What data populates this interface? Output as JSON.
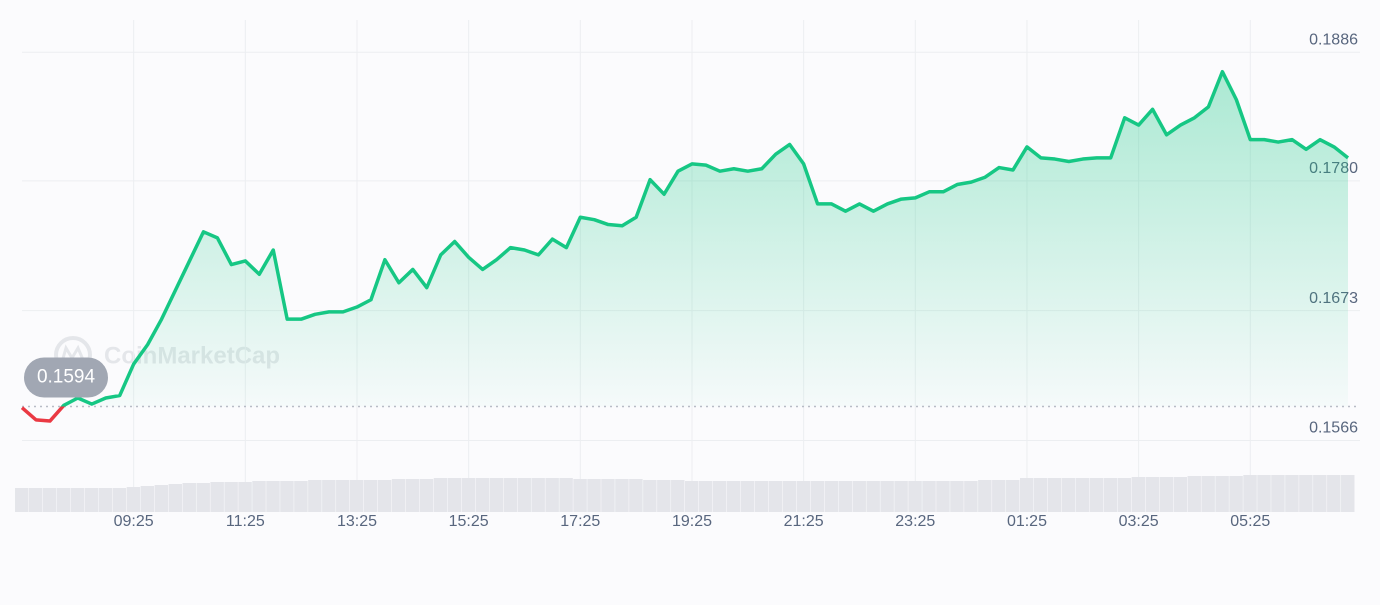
{
  "chart_data": {
    "type": "line",
    "watermark": "CoinMarketCap",
    "reference": 0.1594,
    "color": "#16c784",
    "down_color": "#ea3943",
    "categories": [
      null,
      null,
      null,
      null,
      null,
      null,
      null,
      null,
      "09:25",
      null,
      null,
      null,
      null,
      null,
      null,
      null,
      "11:25",
      null,
      null,
      null,
      null,
      null,
      null,
      null,
      "13:25",
      null,
      null,
      null,
      null,
      null,
      null,
      null,
      "15:25",
      null,
      null,
      null,
      null,
      null,
      null,
      null,
      "17:25",
      null,
      null,
      null,
      null,
      null,
      null,
      null,
      "19:25",
      null,
      null,
      null,
      null,
      null,
      null,
      null,
      "21:25",
      null,
      null,
      null,
      null,
      null,
      null,
      null,
      "23:25",
      null,
      null,
      null,
      null,
      null,
      null,
      null,
      "01:25",
      null,
      null,
      null,
      null,
      null,
      null,
      null,
      "03:25",
      null,
      null,
      null,
      null,
      null,
      null,
      null,
      "05:25",
      null,
      null,
      null,
      null,
      null,
      null,
      null
    ],
    "values": [
      0.1593,
      0.1583,
      0.1582,
      0.1595,
      0.1601,
      0.1596,
      0.1601,
      0.1603,
      0.1629,
      0.1645,
      0.1666,
      0.169,
      0.1714,
      0.1738,
      0.1733,
      0.1711,
      0.1714,
      0.1703,
      0.1723,
      0.1666,
      0.1666,
      0.167,
      0.1672,
      0.1672,
      0.1676,
      0.1682,
      0.1715,
      0.1696,
      0.1707,
      0.1692,
      0.1719,
      0.173,
      0.1717,
      0.1707,
      0.1715,
      0.1725,
      0.1723,
      0.1719,
      0.1732,
      0.1725,
      0.175,
      0.1748,
      0.1744,
      0.1743,
      0.175,
      0.1781,
      0.1769,
      0.1788,
      0.1794,
      0.1793,
      0.1788,
      0.179,
      0.1788,
      0.179,
      0.1802,
      0.181,
      0.1794,
      0.1761,
      0.1761,
      0.1755,
      0.1761,
      0.1755,
      0.1761,
      0.1765,
      0.1766,
      0.1771,
      0.1771,
      0.1777,
      0.1779,
      0.1783,
      0.1791,
      0.1789,
      0.1808,
      0.1799,
      0.1798,
      0.1796,
      0.1798,
      0.1799,
      0.1799,
      0.1832,
      0.1826,
      0.1839,
      0.1818,
      0.1826,
      0.1832,
      0.1841,
      0.187,
      0.1847,
      0.1814,
      0.1814,
      0.1812,
      0.1814,
      0.1806,
      0.1814,
      0.1808,
      0.1799
    ],
    "volume": {
      "color": "#e4e5ea",
      "vlim": [
        0,
        40
      ],
      "values": [
        24,
        24,
        24,
        24,
        24,
        24,
        24,
        24,
        25,
        26,
        27,
        28,
        29,
        29,
        30,
        30,
        30,
        31,
        31,
        31,
        31,
        32,
        32,
        32,
        32,
        32,
        32,
        33,
        33,
        33,
        34,
        34,
        34,
        34,
        34,
        34,
        34,
        34,
        34,
        34,
        33,
        33,
        33,
        33,
        33,
        32,
        32,
        32,
        31,
        31,
        31,
        31,
        31,
        31,
        31,
        31,
        31,
        31,
        31,
        31,
        31,
        31,
        31,
        31,
        31,
        31,
        31,
        31,
        31,
        32,
        32,
        32,
        34,
        34,
        34,
        34,
        34,
        34,
        34,
        34,
        35,
        35,
        35,
        35,
        36,
        36,
        36,
        36,
        37,
        37,
        37,
        37,
        37,
        37,
        37,
        37
      ]
    },
    "ylim": [
      0.154,
      0.1925
    ],
    "yticks": [
      0.1566,
      0.1673,
      {
        "value": 0.178,
        "label": "0.1780"
      },
      0.1886
    ],
    "grid": true
  }
}
